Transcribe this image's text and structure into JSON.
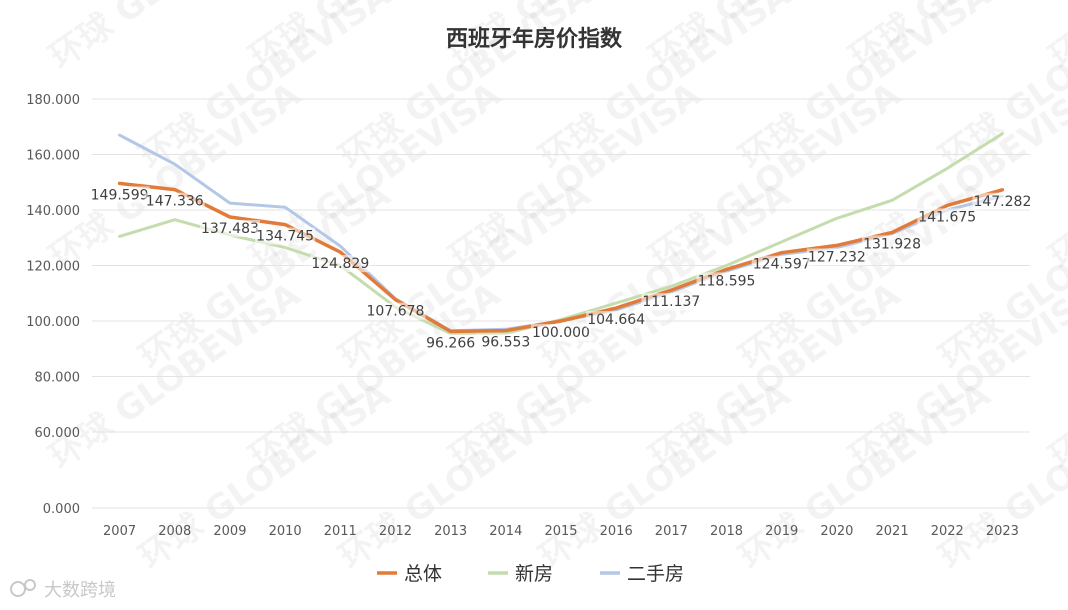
{
  "chart_data": {
    "type": "line",
    "title": "西班牙年房价指数",
    "xlabel": "",
    "ylabel": "",
    "categories": [
      "2007",
      "2008",
      "2009",
      "2010",
      "2011",
      "2012",
      "2013",
      "2014",
      "2015",
      "2016",
      "2017",
      "2018",
      "2019",
      "2020",
      "2021",
      "2022",
      "2023"
    ],
    "yticks": [
      "180.000",
      "160.000",
      "140.000",
      "120.000",
      "100.000",
      "80.000",
      "60.000",
      "0.000"
    ],
    "ylim_note": "axis tick 0.000 is shown directly below 60.000",
    "grid": true,
    "legend_position": "bottom",
    "series": [
      {
        "name": "总体",
        "color": "#e07b39",
        "values": [
          149.599,
          147.336,
          137.483,
          134.745,
          124.829,
          107.678,
          96.266,
          96.553,
          100.0,
          104.664,
          111.137,
          118.595,
          124.597,
          127.232,
          131.928,
          141.675,
          147.282
        ],
        "labels": [
          "149.599",
          "147.336",
          "137.483",
          "134.745",
          "124.829",
          "107.678",
          "96.266",
          "96.553",
          "100.000",
          "104.664",
          "111.137",
          "118.595",
          "124.597",
          "127.232",
          "131.928",
          "141.675",
          "147.282"
        ]
      },
      {
        "name": "新房",
        "color": "#c5dcae",
        "values": [
          130.5,
          136.5,
          131.0,
          126.5,
          120.0,
          105.0,
          95.5,
          95.5,
          100.5,
          106.5,
          112.5,
          120.0,
          128.5,
          137.0,
          143.5,
          155.0,
          167.5
        ]
      },
      {
        "name": "二手房",
        "color": "#b4c7e7",
        "values": [
          167.0,
          156.5,
          142.5,
          141.0,
          127.0,
          108.0,
          96.5,
          97.0,
          100.0,
          104.0,
          110.5,
          118.0,
          124.0,
          126.5,
          131.5,
          140.0,
          145.0
        ]
      }
    ]
  },
  "watermark": "环球 GLOBEVISA",
  "brand": "大数跨境"
}
